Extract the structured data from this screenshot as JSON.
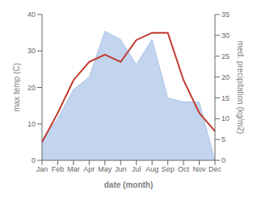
{
  "chart_data": {
    "type": "line",
    "xlabel": "date (month)",
    "ylabel": "max temp (C)",
    "y2label": "med. precipitation (kg/m2)",
    "categories": [
      "Jan",
      "Feb",
      "Mar",
      "Apr",
      "May",
      "Jun",
      "Jul",
      "Aug",
      "Sep",
      "Oct",
      "Nov",
      "Dec"
    ],
    "series": [
      {
        "type": "area",
        "axis": "y2",
        "color": "#aec6e8",
        "values": [
          5,
          10,
          17,
          20,
          31,
          29,
          23,
          29,
          15,
          14,
          14,
          0
        ]
      },
      {
        "type": "line",
        "color": "#c0392b",
        "values": [
          5,
          13,
          22,
          27,
          29,
          27,
          33,
          35,
          35,
          22,
          13,
          8
        ]
      }
    ],
    "ylim": [
      0,
      40
    ],
    "yticks": [
      0,
      10,
      20,
      30,
      40
    ],
    "y2lim": [
      0,
      35
    ],
    "y2ticks": [
      0,
      5,
      10,
      15,
      20,
      25,
      30,
      35
    ]
  }
}
